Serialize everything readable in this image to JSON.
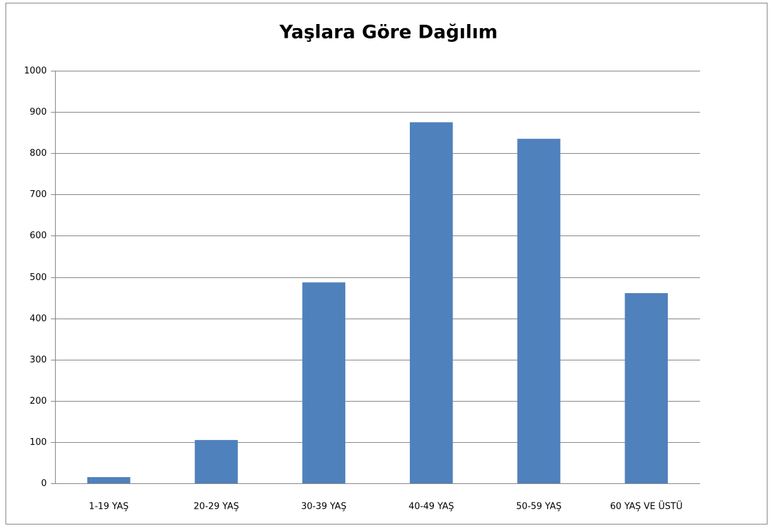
{
  "chart_data": {
    "type": "bar",
    "title": "Yaşlara Göre Dağılım",
    "categories": [
      "1-19 YAŞ",
      "20-29 YAŞ",
      "30-39 YAŞ",
      "40-49 YAŞ",
      "50-59 YAŞ",
      "60 YAŞ VE ÜSTÜ"
    ],
    "values": [
      15,
      105,
      487,
      875,
      835,
      461
    ],
    "color": "#4f81bd",
    "ylim": [
      0,
      1000
    ],
    "yticks": [
      0,
      100,
      200,
      300,
      400,
      500,
      600,
      700,
      800,
      900,
      1000
    ],
    "grid": true
  }
}
